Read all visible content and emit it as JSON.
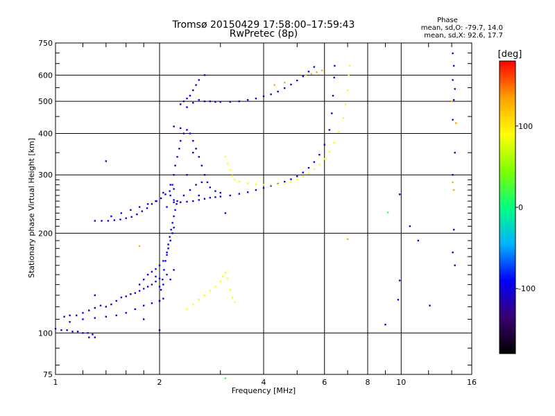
{
  "header": {
    "title": "Tromsø 20150429 17:58:00–17:59:43",
    "subtitle": "RwPretec (8p)",
    "phase_title": "Phase",
    "phase_o": "mean, sd,O: -79.7, 14.0",
    "phase_x": "mean, sd,X:  92.6, 17.7"
  },
  "chart_data": {
    "type": "scatter",
    "xlabel": "Frequency [MHz]",
    "ylabel": "Stationary phase Virtual Height [km]",
    "xscale": "log",
    "yscale": "log",
    "xlim": [
      1,
      16
    ],
    "ylim": [
      75,
      750
    ],
    "x_ticks": [
      1,
      2,
      4,
      6,
      8,
      10,
      16
    ],
    "x_major_grid": [
      2,
      4,
      6,
      8,
      10
    ],
    "x_minor_ticks": [
      1.2,
      1.4,
      1.6,
      1.8,
      3,
      5,
      7,
      9,
      12,
      14
    ],
    "y_ticks": [
      75,
      100,
      200,
      300,
      400,
      500,
      600,
      750
    ],
    "y_major_grid": [
      100,
      200,
      300,
      400,
      500,
      600
    ],
    "y_minor_ticks": [
      80,
      90,
      110,
      120,
      130,
      140,
      150,
      160,
      170,
      180,
      190,
      210,
      220,
      230,
      240,
      250,
      260,
      270,
      280,
      290,
      350,
      450,
      550,
      650,
      700
    ],
    "colorbar": {
      "label": "[deg]",
      "range": [
        -180,
        180
      ],
      "ticks": [
        -100,
        0,
        100
      ],
      "stops": [
        "#000000",
        "#3a0070",
        "#0000ff",
        "#00b4ff",
        "#00ff80",
        "#80ff00",
        "#ffff00",
        "#ffa000",
        "#ff0000"
      ]
    },
    "grid": true,
    "series": [
      {
        "phase": -95,
        "points": [
          [
            1.0,
            103
          ],
          [
            1.04,
            102
          ],
          [
            1.08,
            102
          ],
          [
            1.12,
            101
          ],
          [
            1.16,
            101
          ],
          [
            1.2,
            100
          ],
          [
            1.24,
            100
          ],
          [
            1.28,
            99
          ],
          [
            1.3,
            97
          ]
        ]
      },
      {
        "phase": -95,
        "points": [
          [
            1.06,
            112
          ],
          [
            1.1,
            113
          ],
          [
            1.15,
            113
          ],
          [
            1.2,
            115
          ],
          [
            1.25,
            117
          ],
          [
            1.3,
            119
          ],
          [
            1.35,
            121
          ],
          [
            1.4,
            120
          ],
          [
            1.45,
            122
          ],
          [
            1.5,
            125
          ],
          [
            1.55,
            128
          ],
          [
            1.6,
            129
          ],
          [
            1.65,
            131
          ],
          [
            1.7,
            132
          ],
          [
            1.75,
            134
          ],
          [
            1.8,
            136
          ],
          [
            1.85,
            138
          ],
          [
            1.9,
            140
          ],
          [
            1.95,
            143
          ],
          [
            2.0,
            146
          ]
        ]
      },
      {
        "phase": -95,
        "points": [
          [
            1.1,
            108
          ],
          [
            1.2,
            110
          ],
          [
            1.3,
            111
          ],
          [
            1.4,
            112
          ],
          [
            1.5,
            113
          ],
          [
            1.6,
            115
          ],
          [
            1.7,
            118
          ],
          [
            1.8,
            121
          ],
          [
            1.9,
            123
          ],
          [
            2.0,
            125
          ],
          [
            2.05,
            127
          ]
        ]
      },
      {
        "phase": -90,
        "points": [
          [
            1.75,
            140
          ],
          [
            1.8,
            145
          ],
          [
            1.85,
            150
          ],
          [
            1.9,
            153
          ],
          [
            1.95,
            156
          ],
          [
            2.0,
            160
          ],
          [
            2.05,
            165
          ],
          [
            2.1,
            172
          ],
          [
            2.12,
            180
          ],
          [
            2.15,
            190
          ],
          [
            2.18,
            200
          ],
          [
            2.2,
            208
          ],
          [
            2.1,
            150
          ],
          [
            2.15,
            145
          ],
          [
            2.05,
            140
          ],
          [
            2.0,
            138
          ],
          [
            1.95,
            148
          ],
          [
            2.2,
            155
          ]
        ]
      },
      {
        "phase": -92,
        "points": [
          [
            2.0,
            125
          ],
          [
            2.02,
            135
          ],
          [
            2.04,
            145
          ],
          [
            2.06,
            155
          ],
          [
            2.08,
            165
          ],
          [
            2.1,
            175
          ],
          [
            2.12,
            185
          ],
          [
            2.14,
            195
          ],
          [
            2.16,
            205
          ],
          [
            2.18,
            215
          ],
          [
            2.2,
            225
          ],
          [
            2.22,
            235
          ],
          [
            2.24,
            245
          ]
        ]
      },
      {
        "phase": -95,
        "points": [
          [
            1.3,
            218
          ],
          [
            1.36,
            218
          ],
          [
            1.42,
            218
          ],
          [
            1.48,
            219
          ],
          [
            1.54,
            220
          ],
          [
            1.6,
            222
          ],
          [
            1.66,
            224
          ],
          [
            1.72,
            228
          ],
          [
            1.78,
            233
          ],
          [
            1.84,
            238
          ],
          [
            1.9,
            245
          ],
          [
            1.96,
            250
          ],
          [
            2.02,
            255
          ],
          [
            2.08,
            262
          ],
          [
            2.14,
            268
          ],
          [
            2.2,
            272
          ]
        ]
      },
      {
        "phase": -92,
        "points": [
          [
            1.45,
            225
          ],
          [
            1.55,
            230
          ],
          [
            1.65,
            235
          ],
          [
            1.75,
            240
          ],
          [
            1.85,
            245
          ],
          [
            1.95,
            250
          ],
          [
            2.05,
            265
          ],
          [
            2.15,
            280
          ]
        ]
      },
      {
        "phase": -90,
        "points": [
          [
            2.1,
            240
          ],
          [
            2.15,
            260
          ],
          [
            2.18,
            280
          ],
          [
            2.2,
            300
          ],
          [
            2.22,
            320
          ],
          [
            2.25,
            340
          ],
          [
            2.28,
            360
          ],
          [
            2.3,
            380
          ],
          [
            2.35,
            400
          ],
          [
            2.4,
            410
          ],
          [
            2.45,
            400
          ],
          [
            2.5,
            380
          ],
          [
            2.55,
            360
          ],
          [
            2.6,
            340
          ],
          [
            2.65,
            320
          ],
          [
            2.7,
            300
          ],
          [
            2.75,
            285
          ],
          [
            2.8,
            275
          ],
          [
            2.9,
            268
          ],
          [
            3.0,
            265
          ],
          [
            2.25,
            250
          ],
          [
            2.35,
            260
          ],
          [
            2.45,
            270
          ],
          [
            2.55,
            280
          ],
          [
            2.65,
            285
          ],
          [
            2.2,
            420
          ],
          [
            2.3,
            415
          ],
          [
            2.5,
            350
          ],
          [
            2.4,
            300
          ],
          [
            2.6,
            260
          ]
        ]
      },
      {
        "phase": -100,
        "points": [
          [
            2.2,
            248
          ],
          [
            2.3,
            248
          ],
          [
            2.4,
            249
          ],
          [
            2.5,
            250
          ],
          [
            2.6,
            252
          ],
          [
            2.7,
            254
          ],
          [
            2.8,
            256
          ],
          [
            2.9,
            257
          ],
          [
            3.0,
            258
          ],
          [
            3.2,
            260
          ],
          [
            3.4,
            263
          ],
          [
            3.6,
            266
          ],
          [
            3.8,
            270
          ],
          [
            4.0,
            274
          ],
          [
            4.2,
            278
          ],
          [
            4.4,
            282
          ],
          [
            4.6,
            286
          ],
          [
            4.8,
            291
          ],
          [
            5.0,
            297
          ],
          [
            5.2,
            305
          ],
          [
            5.4,
            315
          ],
          [
            5.6,
            328
          ],
          [
            5.8,
            345
          ],
          [
            6.0,
            370
          ],
          [
            6.2,
            410
          ],
          [
            6.3,
            460
          ],
          [
            6.35,
            520
          ],
          [
            6.4,
            590
          ],
          [
            6.42,
            640
          ]
        ]
      },
      {
        "phase": -95,
        "points": [
          [
            2.3,
            490
          ],
          [
            2.35,
            500
          ],
          [
            2.4,
            510
          ],
          [
            2.45,
            520
          ],
          [
            2.5,
            540
          ],
          [
            2.55,
            560
          ],
          [
            2.6,
            580
          ],
          [
            2.7,
            600
          ],
          [
            2.4,
            480
          ],
          [
            2.5,
            495
          ],
          [
            2.6,
            505
          ],
          [
            2.7,
            500
          ],
          [
            2.8,
            500
          ]
        ]
      },
      {
        "phase": -100,
        "points": [
          [
            2.9,
            498
          ],
          [
            3.0,
            498
          ],
          [
            3.2,
            498
          ],
          [
            3.4,
            500
          ],
          [
            3.6,
            505
          ],
          [
            3.8,
            510
          ],
          [
            4.0,
            518
          ],
          [
            4.2,
            525
          ],
          [
            4.4,
            535
          ],
          [
            4.6,
            548
          ],
          [
            4.8,
            562
          ],
          [
            5.0,
            578
          ],
          [
            5.2,
            595
          ],
          [
            5.4,
            615
          ],
          [
            5.6,
            635
          ]
        ]
      },
      {
        "phase": 90,
        "points": [
          [
            3.1,
            340
          ],
          [
            3.15,
            325
          ],
          [
            3.2,
            310
          ],
          [
            3.25,
            298
          ],
          [
            3.3,
            290
          ],
          [
            3.4,
            286
          ],
          [
            3.6,
            283
          ],
          [
            3.8,
            281
          ],
          [
            4.0,
            280
          ],
          [
            4.2,
            280
          ],
          [
            4.4,
            281
          ],
          [
            4.6,
            283
          ],
          [
            4.8,
            286
          ],
          [
            5.0,
            290
          ],
          [
            5.2,
            296
          ],
          [
            5.4,
            303
          ],
          [
            5.6,
            312
          ],
          [
            5.8,
            322
          ],
          [
            6.0,
            335
          ],
          [
            6.2,
            352
          ],
          [
            6.4,
            375
          ],
          [
            6.6,
            405
          ],
          [
            6.8,
            445
          ],
          [
            6.9,
            490
          ],
          [
            7.0,
            540
          ],
          [
            7.05,
            600
          ],
          [
            7.1,
            640
          ]
        ]
      },
      {
        "phase": 90,
        "points": [
          [
            2.4,
            118
          ],
          [
            2.5,
            122
          ],
          [
            2.6,
            126
          ],
          [
            2.7,
            130
          ],
          [
            2.8,
            134
          ],
          [
            2.9,
            138
          ],
          [
            3.0,
            143
          ],
          [
            3.05,
            148
          ],
          [
            3.1,
            152
          ],
          [
            3.15,
            146
          ],
          [
            3.2,
            135
          ],
          [
            3.25,
            128
          ],
          [
            3.3,
            124
          ]
        ]
      },
      {
        "phase": 130,
        "points": [
          [
            5.3,
            600
          ],
          [
            5.5,
            605
          ],
          [
            5.7,
            612
          ],
          [
            5.9,
            620
          ],
          [
            4.3,
            560
          ],
          [
            4.6,
            570
          ]
        ]
      },
      {
        "phase": -100,
        "points": [
          [
            1.4,
            330
          ],
          [
            2.2,
            252
          ],
          [
            1.3,
            130
          ],
          [
            1.25,
            97
          ],
          [
            1.8,
            110
          ],
          [
            3.1,
            230
          ],
          [
            2.0,
            102
          ]
        ]
      },
      {
        "phase": -90,
        "points": [
          [
            9.9,
            144
          ],
          [
            9.8,
            126
          ],
          [
            9.9,
            262
          ],
          [
            11.2,
            190
          ],
          [
            10.6,
            210
          ],
          [
            12.1,
            121
          ],
          [
            9.0,
            106
          ]
        ]
      },
      {
        "phase": -110,
        "points": [
          [
            14.1,
            698
          ],
          [
            14.2,
            640
          ],
          [
            14.1,
            580
          ],
          [
            14.3,
            545
          ],
          [
            14.2,
            505
          ],
          [
            14.1,
            440
          ],
          [
            14.3,
            350
          ],
          [
            14.1,
            300
          ],
          [
            14.2,
            205
          ],
          [
            14.1,
            175
          ],
          [
            14.3,
            160
          ]
        ]
      },
      {
        "phase": 130,
        "points": [
          [
            14.0,
            500
          ],
          [
            14.4,
            430
          ],
          [
            14.1,
            285
          ],
          [
            14.2,
            270
          ],
          [
            7.0,
            192
          ],
          [
            1.75,
            183
          ]
        ]
      },
      {
        "phase": 20,
        "points": [
          [
            9.15,
            231
          ],
          [
            3.1,
            73
          ]
        ]
      }
    ]
  }
}
